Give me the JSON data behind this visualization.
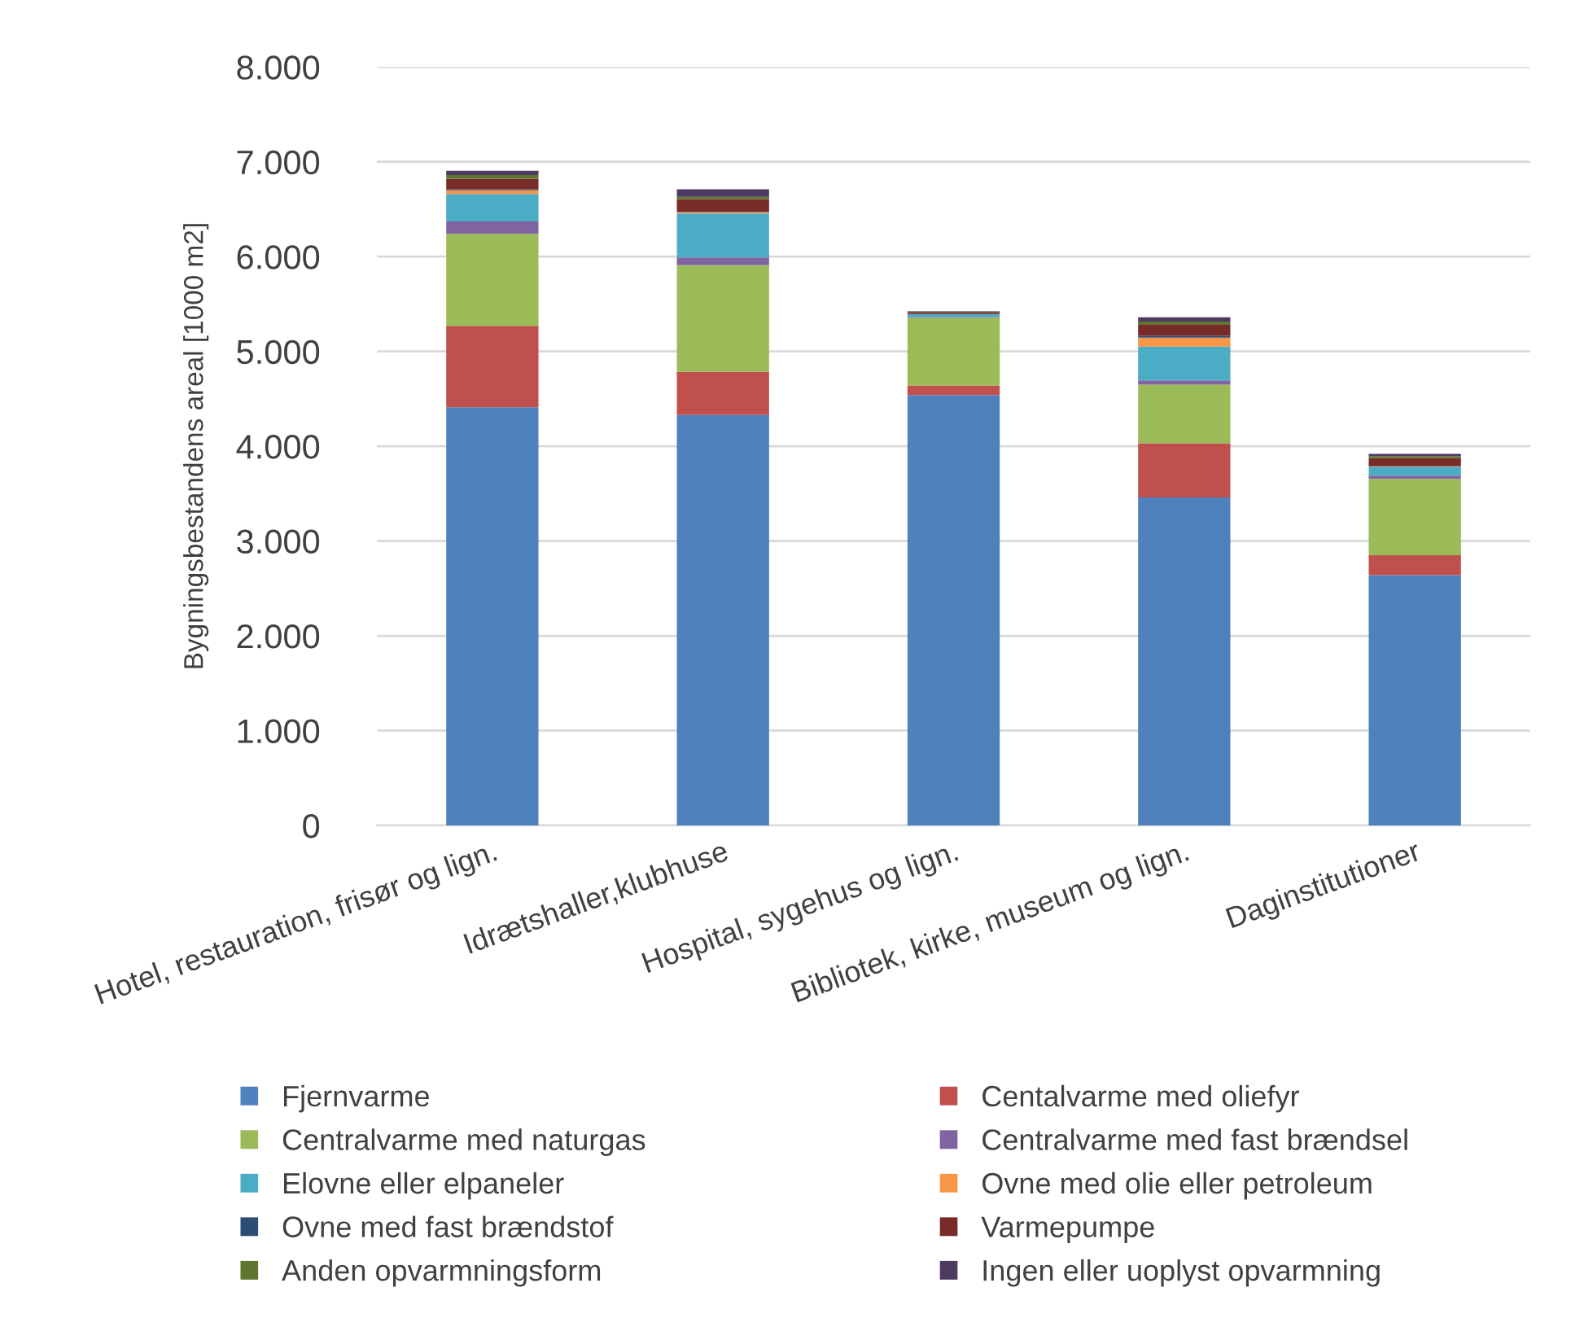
{
  "chart_data": {
    "type": "bar",
    "stacked": true,
    "ylabel": "Bygningsbestandens areal [1000 m2]",
    "categories": [
      "Hotel, restauration, frisør og lign.",
      "Idrætshaller,klubhuse",
      "Hospital, sygehus og lign.",
      "Bibliotek, kirke, museum og lign.",
      "Daginstitutioner"
    ],
    "series": [
      {
        "name": "Fjernvarme",
        "color": "#4f81bd",
        "values": [
          4410,
          4330,
          4540,
          3460,
          2640
        ]
      },
      {
        "name": "Centalvarme med oliefyr",
        "color": "#c0504d",
        "values": [
          860,
          455,
          100,
          570,
          210
        ]
      },
      {
        "name": "Centralvarme med naturgas",
        "color": "#9bbb59",
        "values": [
          970,
          1125,
          715,
          620,
          805
        ]
      },
      {
        "name": "Centralvarme med fast brændsel",
        "color": "#8064a2",
        "values": [
          130,
          80,
          10,
          45,
          35
        ]
      },
      {
        "name": "Elovne eller elpaneler",
        "color": "#4bacc6",
        "values": [
          290,
          465,
          30,
          355,
          90
        ]
      },
      {
        "name": "Ovne med olie eller petroleum",
        "color": "#f79646",
        "values": [
          40,
          15,
          0,
          95,
          5
        ]
      },
      {
        "name": "Ovne med fast brændstof",
        "color": "#2c4d75",
        "values": [
          10,
          5,
          0,
          20,
          5
        ]
      },
      {
        "name": "Varmepumpe",
        "color": "#772c2a",
        "values": [
          110,
          130,
          20,
          115,
          85
        ]
      },
      {
        "name": "Anden opvarmningsform",
        "color": "#5f7530",
        "values": [
          40,
          25,
          5,
          35,
          20
        ]
      },
      {
        "name": "Ingen eller uoplyst opvarmning",
        "color": "#4d3b62",
        "values": [
          45,
          80,
          5,
          45,
          25
        ]
      }
    ],
    "ylim": [
      0,
      8000
    ],
    "yticks": [
      0,
      {
        "value": 1000,
        "label": "1.000"
      },
      {
        "value": 2000,
        "label": "2.000"
      },
      {
        "value": 3000,
        "label": "3.000"
      },
      {
        "value": 4000,
        "label": "4.000"
      },
      {
        "value": 5000,
        "label": "5.000"
      },
      {
        "value": 6000,
        "label": "6.000"
      },
      {
        "value": 7000,
        "label": "7.000"
      },
      {
        "value": 8000,
        "label": "8.000"
      }
    ],
    "grid": "y",
    "legend": "bottom"
  }
}
